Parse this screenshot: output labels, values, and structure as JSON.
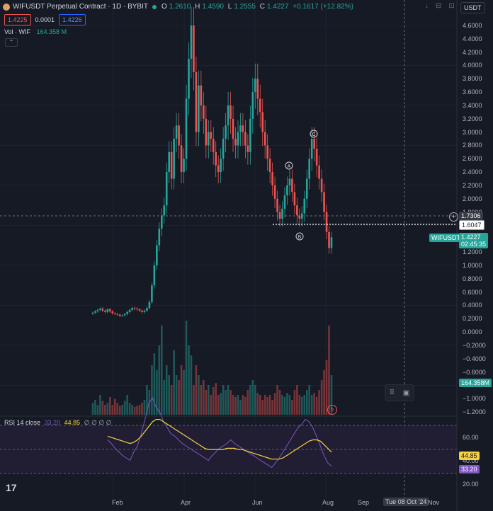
{
  "header": {
    "symbol": "WIFUSDT Perpetual Contract · 1D · BYBIT",
    "o_label": "O",
    "o_val": "1.2610",
    "h_label": "H",
    "h_val": "1.4590",
    "l_label": "L",
    "l_val": "1.2555",
    "c_label": "C",
    "c_val": "1.4227",
    "change": "+0.1617 (+12.82%)",
    "sell": "1.4225",
    "spread": "0.0001",
    "buy": "1.4226",
    "currency": "USDT",
    "vol_label": "Vol · WIF",
    "vol_val": "164.358 M"
  },
  "price_axis": [
    "4.6000",
    "4.4000",
    "4.2000",
    "4.0000",
    "3.8000",
    "3.6000",
    "3.4000",
    "3.2000",
    "3.0000",
    "2.8000",
    "2.6000",
    "2.4000",
    "2.2000",
    "2.0000",
    "1.8000",
    "1.7306",
    "1.6047",
    "1.4227",
    "02:45:35",
    "1.2000",
    "1.0000",
    "0.8000",
    "0.6000",
    "0.4000",
    "0.2000",
    "0.0000",
    "−0.2000",
    "−0.4000",
    "−0.6000",
    "−0.8000",
    "−1.0000",
    "−1.2000"
  ],
  "tags": {
    "cross_price": "1.7306",
    "line_price": "1.6047",
    "symbol_tag": "WIFUSDT.P",
    "last_price": "1.4227",
    "countdown": "02:45:35",
    "volume": "164.358M"
  },
  "wave_labels": [
    "A",
    "B",
    "C"
  ],
  "rsi": {
    "label": "RSI 14 close",
    "v1": "33.20",
    "v2": "44.85",
    "dots": "∅ ∅ ∅ ∅",
    "axis": [
      "60.00",
      "40.00",
      "20.00"
    ],
    "tag_ma": "44.85",
    "tag_rsi": "33.20"
  },
  "time_axis": [
    "Feb",
    "Apr",
    "Jun",
    "Aug",
    "Sep",
    "Nov"
  ],
  "cursor_date": "Tue 08 Oct '24",
  "chart_data": {
    "type": "candlestick",
    "timeframe": "1D",
    "symbol": "WIFUSDT",
    "x_ticks": [
      "Feb",
      "Apr",
      "Jun",
      "Aug",
      "Sep",
      "Nov"
    ],
    "ylim": [
      -1.3,
      4.8
    ],
    "series": [
      {
        "name": "close",
        "values": [
          0.29,
          0.31,
          0.33,
          0.35,
          0.32,
          0.3,
          0.34,
          0.31,
          0.28,
          0.27,
          0.26,
          0.24,
          0.25,
          0.27,
          0.3,
          0.33,
          0.36,
          0.35,
          0.34,
          0.32,
          0.3,
          0.32,
          0.36,
          0.45,
          0.7,
          1.0,
          1.3,
          1.55,
          1.75,
          1.9,
          2.4,
          2.7,
          2.3,
          2.9,
          3.1,
          2.8,
          2.4,
          2.6,
          3.5,
          4.1,
          4.6,
          3.9,
          3.0,
          3.7,
          3.4,
          3.2,
          2.8,
          3.0,
          2.9,
          2.7,
          2.5,
          2.4,
          2.6,
          2.9,
          3.1,
          3.4,
          3.2,
          2.9,
          2.8,
          3.0,
          3.1,
          3.0,
          2.8,
          2.7,
          3.2,
          3.6,
          3.8,
          3.5,
          3.3,
          3.0,
          2.8,
          2.6,
          2.4,
          2.2,
          2.0,
          1.8,
          1.7,
          1.85,
          2.05,
          2.2,
          2.3,
          2.1,
          1.9,
          1.75,
          1.7,
          1.78,
          2.0,
          2.3,
          2.6,
          2.9,
          2.75,
          2.5,
          2.3,
          2.1,
          1.8,
          1.5,
          1.26,
          1.42
        ]
      }
    ],
    "annotations": {
      "wave_A": 2.45,
      "wave_B": 1.45,
      "wave_C": 2.95,
      "h_line_cross": 1.7306,
      "h_line_dotted": 1.6047
    },
    "volume": [
      0.12,
      0.15,
      0.1,
      0.2,
      0.14,
      0.1,
      0.12,
      0.18,
      0.1,
      0.16,
      0.12,
      0.09,
      0.1,
      0.14,
      0.2,
      0.12,
      0.1,
      0.08,
      0.09,
      0.1,
      0.12,
      0.15,
      0.3,
      0.25,
      0.5,
      0.62,
      0.45,
      0.7,
      0.9,
      0.35,
      0.5,
      0.4,
      0.3,
      0.65,
      0.4,
      0.35,
      0.5,
      0.45,
      0.95,
      0.7,
      0.6,
      0.3,
      0.5,
      0.4,
      0.3,
      0.35,
      0.25,
      0.3,
      0.2,
      0.28,
      0.32,
      0.2,
      0.22,
      0.3,
      0.25,
      0.3,
      0.25,
      0.2,
      0.18,
      0.2,
      0.15,
      0.2,
      0.18,
      0.25,
      0.3,
      0.35,
      0.3,
      0.22,
      0.2,
      0.15,
      0.2,
      0.18,
      0.2,
      0.15,
      0.22,
      0.3,
      0.25,
      0.2,
      0.18,
      0.22,
      0.2,
      0.15,
      0.25,
      0.3,
      0.2,
      0.18,
      0.2,
      0.25,
      0.3,
      0.2,
      0.22,
      0.18,
      0.25,
      0.35,
      0.45,
      0.55,
      0.9,
      0.4
    ],
    "rsi_series": [
      55,
      52,
      48,
      45,
      42,
      40,
      38,
      45,
      50,
      60,
      72,
      85,
      90,
      82,
      78,
      70,
      65,
      60,
      58,
      55,
      52,
      50,
      48,
      46,
      44,
      42,
      40,
      38,
      42,
      45,
      48,
      50,
      52,
      55,
      52,
      50,
      48,
      46,
      44,
      42,
      40,
      38,
      36,
      34,
      32,
      36,
      40,
      45,
      50,
      55,
      60,
      65,
      68,
      72,
      70,
      65,
      58,
      50,
      42,
      36,
      33
    ],
    "rsi_ma": [
      58,
      57,
      56,
      55,
      54,
      53,
      52,
      53,
      55,
      58,
      62,
      66,
      70,
      72,
      72,
      70,
      68,
      66,
      64,
      62,
      60,
      58,
      56,
      54,
      52,
      50,
      48,
      47,
      47,
      47,
      47,
      47,
      48,
      48,
      48,
      47,
      47,
      46,
      45,
      44,
      43,
      42,
      41,
      40,
      39,
      39,
      39,
      40,
      42,
      44,
      46,
      48,
      50,
      52,
      54,
      55,
      55,
      54,
      51,
      48,
      44.85
    ]
  }
}
